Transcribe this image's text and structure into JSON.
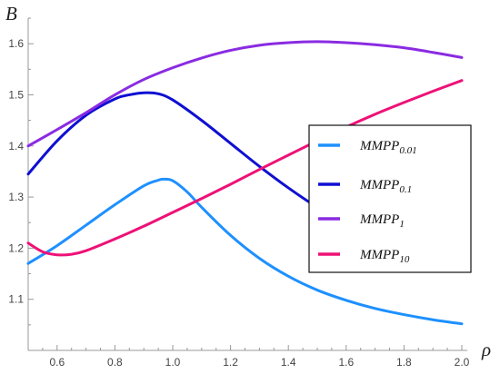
{
  "chart_data": {
    "type": "line",
    "xlabel": "ρ",
    "ylabel": "B",
    "xlim": [
      0.5,
      2.0
    ],
    "ylim": [
      1.0,
      1.65
    ],
    "x_ticks": [
      "0.6",
      "0.8",
      "1.0",
      "1.2",
      "1.4",
      "1.6",
      "1.8",
      "2.0"
    ],
    "y_ticks": [
      "1.1",
      "1.2",
      "1.3",
      "1.4",
      "1.5",
      "1.6"
    ],
    "grid": false,
    "legend_position": "right",
    "series": [
      {
        "name": "MMPP",
        "subscript": "0.01",
        "color": "#1e90ff",
        "x": [
          0.5,
          0.6,
          0.7,
          0.8,
          0.9,
          0.95,
          0.97,
          1.0,
          1.05,
          1.1,
          1.2,
          1.3,
          1.4,
          1.5,
          1.6,
          1.7,
          1.8,
          1.9,
          2.0
        ],
        "y": [
          1.17,
          1.205,
          1.245,
          1.285,
          1.322,
          1.333,
          1.335,
          1.332,
          1.31,
          1.28,
          1.225,
          1.18,
          1.145,
          1.118,
          1.098,
          1.082,
          1.07,
          1.06,
          1.052
        ]
      },
      {
        "name": "MMPP",
        "subscript": "0.1",
        "color": "#0f0fd2",
        "x": [
          0.5,
          0.6,
          0.7,
          0.8,
          0.85,
          0.9,
          0.95,
          1.0,
          1.1,
          1.2,
          1.3,
          1.4,
          1.5,
          1.6,
          1.7,
          1.8,
          1.9,
          2.0
        ],
        "y": [
          1.345,
          1.41,
          1.46,
          1.492,
          1.5,
          1.504,
          1.502,
          1.49,
          1.45,
          1.405,
          1.36,
          1.318,
          1.28,
          1.248,
          1.222,
          1.2,
          1.18,
          1.162
        ]
      },
      {
        "name": "MMPP",
        "subscript": "1",
        "color": "#8a2be2",
        "x": [
          0.5,
          0.6,
          0.7,
          0.8,
          0.9,
          1.0,
          1.1,
          1.2,
          1.3,
          1.4,
          1.5,
          1.6,
          1.7,
          1.8,
          1.9,
          2.0
        ],
        "y": [
          1.4,
          1.432,
          1.465,
          1.5,
          1.53,
          1.553,
          1.572,
          1.587,
          1.597,
          1.602,
          1.604,
          1.602,
          1.598,
          1.592,
          1.583,
          1.573
        ]
      },
      {
        "name": "MMPP",
        "subscript": "10",
        "color": "#ee1177",
        "x": [
          0.5,
          0.55,
          0.6,
          0.65,
          0.7,
          0.8,
          0.9,
          1.0,
          1.1,
          1.2,
          1.3,
          1.4,
          1.5,
          1.6,
          1.7,
          1.8,
          1.9,
          2.0
        ],
        "y": [
          1.21,
          1.193,
          1.187,
          1.188,
          1.195,
          1.218,
          1.243,
          1.27,
          1.297,
          1.325,
          1.354,
          1.382,
          1.41,
          1.437,
          1.462,
          1.485,
          1.507,
          1.528
        ]
      }
    ]
  }
}
